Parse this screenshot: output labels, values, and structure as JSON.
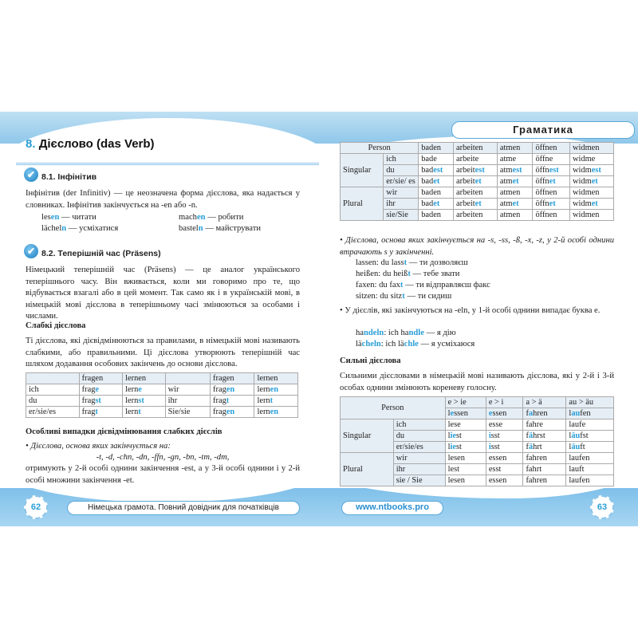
{
  "left": {
    "chapter_num": "8.",
    "chapter_title": "Дієслово (das Verb)",
    "s1_title": "8.1. Інфінітив",
    "s1_text": "Інфінітив (der Infinitiv) — це неозначена форма дієслова, яка надається у словниках. Інфінітив закінчується на -en або -n.",
    "s1_examples": [
      [
        "les",
        "en",
        " — читати"
      ],
      [
        "mach",
        "en",
        " — робити"
      ],
      [
        "lächel",
        "n",
        " — усміхатися"
      ],
      [
        "bastel",
        "n",
        " — майструвати"
      ]
    ],
    "s2_title": "8.2. Теперішній час (Präsens)",
    "s2_text": "Німецький теперішній час (Präsens) — це аналог українського теперішнього часу. Він вживається, коли ми говоримо про те, що відбувається взагалі або в цей момент. Так само як і в українській мові, в німецькій мові дієслова в теперішньому часі змінюються за особами і числами.",
    "weak_title": "Слабкі дієслова",
    "weak_text": "Ті дієслова, які дієвідмінюються за правилами, в німецькій мові називають слабкими, або правильними. Ці дієслова утворюють теперішній час шляхом додавання особових закінчень до основи дієслова.",
    "weak_table": [
      [
        [
          ""
        ],
        [
          "fragen"
        ],
        [
          "lernen"
        ],
        [
          ""
        ],
        [
          "fragen"
        ],
        [
          "lernen"
        ]
      ],
      [
        [
          "ich"
        ],
        [
          "frag",
          "e"
        ],
        [
          "lern",
          "e"
        ],
        [
          "wir"
        ],
        [
          "frag",
          "en"
        ],
        [
          "lern",
          "en"
        ]
      ],
      [
        [
          "du"
        ],
        [
          "frag",
          "st"
        ],
        [
          "lern",
          "st"
        ],
        [
          "ihr"
        ],
        [
          "frag",
          "t"
        ],
        [
          "lern",
          "t"
        ]
      ],
      [
        [
          "er/sie/es"
        ],
        [
          "frag",
          "t"
        ],
        [
          "lern",
          "t"
        ],
        [
          "Sie/sie"
        ],
        [
          "frag",
          "en"
        ],
        [
          "lern",
          "en"
        ]
      ]
    ],
    "special_title": "Особливі випадки дієвідмінювання слабких дієслів",
    "special_bullet": "Дієслова, основа яких закінчується на:",
    "special_endings": "-t, -d, -chn, -dn, -ffn, -gn, -bn, -tm, -dm,",
    "special_text": "отримують у 2-й особі однини закінчення -est, а у 3-й особі однини і у 2-й особі множини закінчення -et.",
    "page_number": "62",
    "footer_title": "Німецька грамота. Повний довідник для початківців"
  },
  "right": {
    "header_label": "Граматика",
    "table1": {
      "person": "Person",
      "columns": [
        "baden",
        "arbeiten",
        "atmen",
        "öffnen",
        "widmen"
      ],
      "groups": [
        {
          "label": "Singular",
          "rows": [
            {
              "p": "ich",
              "cells": [
                [
                  "bade"
                ],
                [
                  "arbeite"
                ],
                [
                  "atme"
                ],
                [
                  "öffne"
                ],
                [
                  "widme"
                ]
              ]
            },
            {
              "p": "du",
              "cells": [
                [
                  "bad",
                  "est"
                ],
                [
                  "arbeit",
                  "est"
                ],
                [
                  "atm",
                  "est"
                ],
                [
                  "öffn",
                  "est"
                ],
                [
                  "widm",
                  "est"
                ]
              ]
            },
            {
              "p": "er/sie/ es",
              "cells": [
                [
                  "bad",
                  "et"
                ],
                [
                  "arbeit",
                  "et"
                ],
                [
                  "atm",
                  "et"
                ],
                [
                  "öffn",
                  "et"
                ],
                [
                  "widm",
                  "et"
                ]
              ]
            }
          ]
        },
        {
          "label": "Plural",
          "rows": [
            {
              "p": "wir",
              "cells": [
                [
                  "baden"
                ],
                [
                  "arbeiten"
                ],
                [
                  "atmen"
                ],
                [
                  "öffnen"
                ],
                [
                  "widmen"
                ]
              ]
            },
            {
              "p": "ihr",
              "cells": [
                [
                  "bad",
                  "et"
                ],
                [
                  "arbeit",
                  "et"
                ],
                [
                  "atm",
                  "et"
                ],
                [
                  "öffn",
                  "et"
                ],
                [
                  "widm",
                  "et"
                ]
              ]
            },
            {
              "p": "sie/Sie",
              "cells": [
                [
                  "baden"
                ],
                [
                  "arbeiten"
                ],
                [
                  "atmen"
                ],
                [
                  "öffnen"
                ],
                [
                  "widmen"
                ]
              ]
            }
          ]
        }
      ]
    },
    "bullet1": "Дієслова, основа яких закінчується на -s, -ss, -ß, -x, -z, у 2-й особі однини втрачають s у закінченні.",
    "bullet1_examples": [
      [
        "lassen: du lass",
        "t",
        " — ти дозволяєш"
      ],
      [
        "heißen: du heiß",
        "t",
        " — тебе звати"
      ],
      [
        "faxen: du fax",
        "t",
        " — ти відправляєш факс"
      ],
      [
        "sitzen: du sitz",
        "t",
        " — ти сидиш"
      ]
    ],
    "bullet2": "У дієслів, які закінчуються на -eln, у 1-й особі однини випадає буква e.",
    "bullet2_examples": [
      [
        "ha",
        "ndeln",
        ": ich ha",
        "ndle",
        " — я дію"
      ],
      [
        "lä",
        "cheln",
        ": ich lä",
        "chle",
        " — я усміхаюся"
      ]
    ],
    "strong_title": "Сильні дієслова",
    "strong_text": "Сильними дієсловами в німецькій мові називають дієслова, які у 2-й і 3-й особах однини змінюють кореневу голосну.",
    "table2": {
      "person": "Person",
      "changes": [
        "e > ie",
        "e > i",
        "a > ä",
        "au > äu"
      ],
      "verbs": [
        [
          "l",
          "e",
          "ssen"
        ],
        [
          "",
          "e",
          "ssen"
        ],
        [
          "f",
          "a",
          "hren"
        ],
        [
          "l",
          "au",
          "fen"
        ]
      ],
      "groups": [
        {
          "label": "Singular",
          "rows": [
            {
              "p": "ich",
              "cells": [
                [
                  "lese"
                ],
                [
                  "esse"
                ],
                [
                  "fahre"
                ],
                [
                  "laufe"
                ]
              ]
            },
            {
              "p": "du",
              "cells": [
                [
                  "l",
                  "ie",
                  "st"
                ],
                [
                  "",
                  "i",
                  "sst"
                ],
                [
                  "f",
                  "ä",
                  "hrst"
                ],
                [
                  "l",
                  "äu",
                  "fst"
                ]
              ]
            },
            {
              "p": "er/sie/es",
              "cells": [
                [
                  "l",
                  "ie",
                  "st"
                ],
                [
                  "",
                  "i",
                  "sst"
                ],
                [
                  "f",
                  "ä",
                  "hrt"
                ],
                [
                  "l",
                  "äu",
                  "ft"
                ]
              ]
            }
          ]
        },
        {
          "label": "Plural",
          "rows": [
            {
              "p": "wir",
              "cells": [
                [
                  "lesen"
                ],
                [
                  "essen"
                ],
                [
                  "fahren"
                ],
                [
                  "laufen"
                ]
              ]
            },
            {
              "p": "ihr",
              "cells": [
                [
                  "lest"
                ],
                [
                  "esst"
                ],
                [
                  "fahrt"
                ],
                [
                  "lauft"
                ]
              ]
            },
            {
              "p": "sie / Sie",
              "cells": [
                [
                  "lesen"
                ],
                [
                  "essen"
                ],
                [
                  "fahren"
                ],
                [
                  "laufen"
                ]
              ]
            }
          ]
        }
      ]
    },
    "website": "www.ntbooks.pro",
    "page_number": "63"
  },
  "colors": {
    "accent": "#2a9fd8",
    "band": "#8fc7ea"
  },
  "icons": [
    "check-circle-icon"
  ]
}
